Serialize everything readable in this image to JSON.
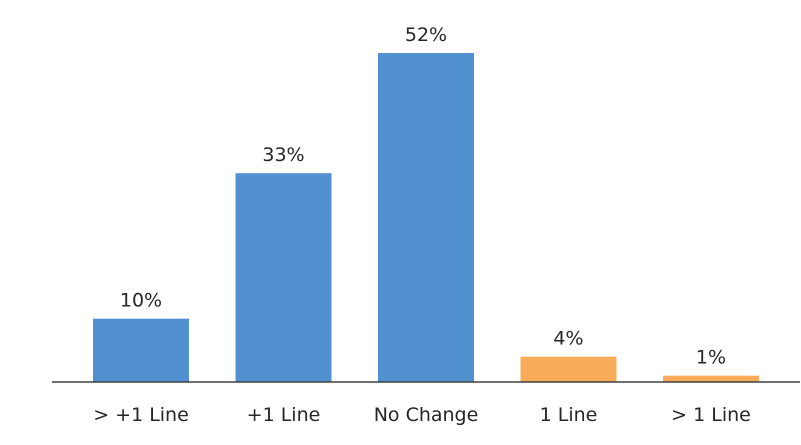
{
  "chart_data": {
    "type": "bar",
    "categories": [
      "> +1 Line",
      "+1 Line",
      "No Change",
      "1 Line",
      "> 1 Line"
    ],
    "values": [
      10,
      33,
      52,
      4,
      1
    ],
    "data_labels": [
      "10%",
      "33%",
      "52%",
      "4%",
      "1%"
    ],
    "bar_colors": [
      "#5191d0",
      "#5191d0",
      "#5191d0",
      "#f8ac5a",
      "#f8ac5a"
    ],
    "axis_color": "#404040",
    "ylim": [
      0,
      52
    ],
    "grid": false,
    "legend": "none"
  }
}
